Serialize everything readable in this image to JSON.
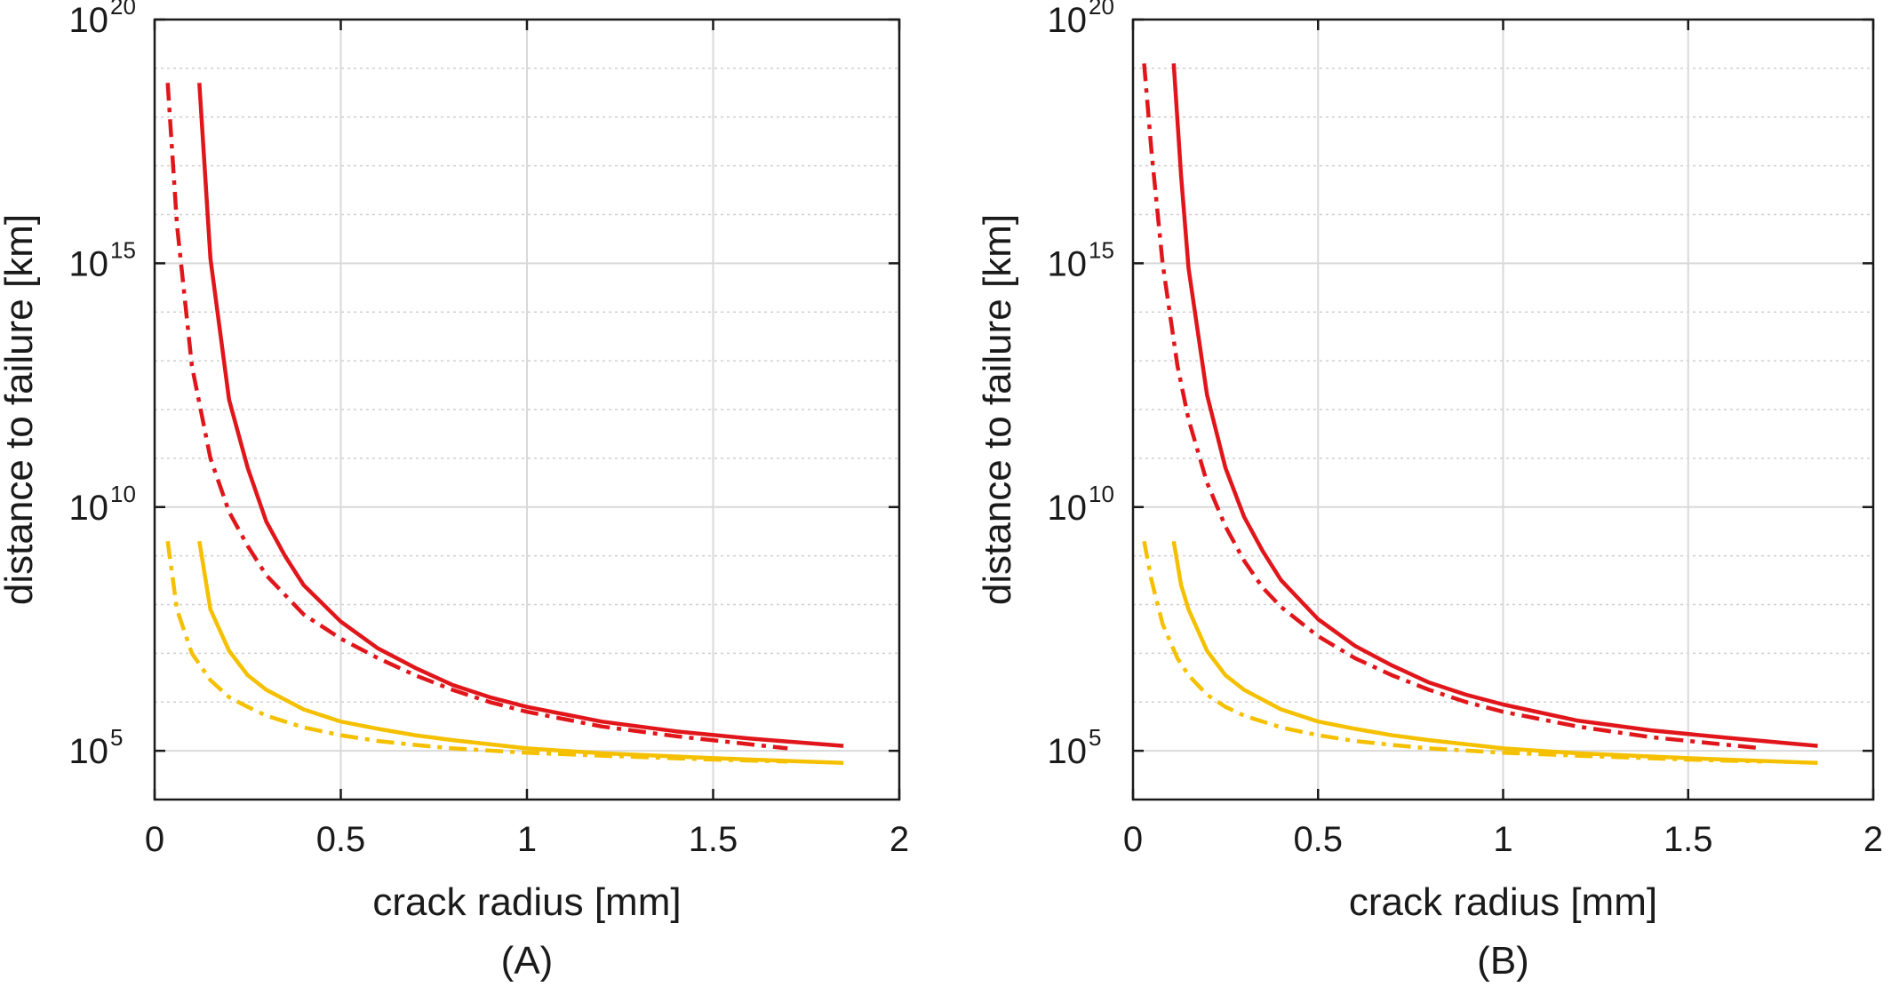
{
  "chart_data": [
    {
      "type": "line",
      "panel_label": "(A)",
      "xlabel": "crack radius [mm]",
      "ylabel": "distance to failure [km]",
      "xlim": [
        0,
        2
      ],
      "ylim_log10": [
        4,
        20
      ],
      "yscale": "log",
      "grid": true,
      "xticks": [
        "0",
        "0.5",
        "1",
        "1.5",
        "2"
      ],
      "yticks": [
        {
          "base": "10",
          "exp": "5",
          "log10": 5
        },
        {
          "base": "10",
          "exp": "10",
          "log10": 10
        },
        {
          "base": "10",
          "exp": "15",
          "log10": 15
        },
        {
          "base": "10",
          "exp": "20",
          "log10": 20
        }
      ],
      "series": [
        {
          "color": "#e0161b",
          "style": "solid",
          "x": [
            0.12,
            0.15,
            0.2,
            0.25,
            0.3,
            0.35,
            0.4,
            0.5,
            0.6,
            0.7,
            0.8,
            0.9,
            1.0,
            1.2,
            1.4,
            1.6,
            1.85
          ],
          "y_log10": [
            18.7,
            15.1,
            12.2,
            10.8,
            9.7,
            9.0,
            8.4,
            7.65,
            7.1,
            6.7,
            6.35,
            6.1,
            5.9,
            5.6,
            5.4,
            5.25,
            5.1
          ]
        },
        {
          "color": "#e0161b",
          "style": "dashdot",
          "x": [
            0.035,
            0.06,
            0.1,
            0.15,
            0.2,
            0.25,
            0.3,
            0.35,
            0.4,
            0.5,
            0.6,
            0.7,
            0.8,
            0.9,
            1.0,
            1.2,
            1.4,
            1.7
          ],
          "y_log10": [
            18.7,
            15.8,
            12.9,
            11.0,
            9.9,
            9.2,
            8.6,
            8.2,
            7.8,
            7.3,
            6.9,
            6.55,
            6.25,
            6.0,
            5.8,
            5.5,
            5.3,
            5.05
          ]
        },
        {
          "color": "#f5c000",
          "style": "solid",
          "x": [
            0.12,
            0.15,
            0.2,
            0.25,
            0.3,
            0.4,
            0.5,
            0.6,
            0.7,
            0.8,
            1.0,
            1.2,
            1.5,
            1.85
          ],
          "y_log10": [
            9.3,
            7.9,
            7.05,
            6.55,
            6.25,
            5.85,
            5.6,
            5.45,
            5.32,
            5.22,
            5.05,
            4.95,
            4.85,
            4.75
          ]
        },
        {
          "color": "#f5c000",
          "style": "dashdot",
          "x": [
            0.035,
            0.06,
            0.1,
            0.15,
            0.2,
            0.25,
            0.3,
            0.4,
            0.5,
            0.6,
            0.7,
            0.8,
            1.0,
            1.2,
            1.5,
            1.7
          ],
          "y_log10": [
            9.3,
            7.9,
            7.0,
            6.45,
            6.1,
            5.9,
            5.72,
            5.48,
            5.32,
            5.2,
            5.12,
            5.05,
            4.96,
            4.9,
            4.82,
            4.78
          ]
        }
      ]
    },
    {
      "type": "line",
      "panel_label": "(B)",
      "xlabel": "crack radius [mm]",
      "ylabel": "distance to failure [km]",
      "xlim": [
        0,
        2
      ],
      "ylim_log10": [
        4,
        20
      ],
      "yscale": "log",
      "grid": true,
      "xticks": [
        "0",
        "0.5",
        "1",
        "1.5",
        "2"
      ],
      "yticks": [
        {
          "base": "10",
          "exp": "5",
          "log10": 5
        },
        {
          "base": "10",
          "exp": "10",
          "log10": 10
        },
        {
          "base": "10",
          "exp": "15",
          "log10": 15
        },
        {
          "base": "10",
          "exp": "20",
          "log10": 20
        }
      ],
      "series": [
        {
          "color": "#e0161b",
          "style": "solid",
          "x": [
            0.11,
            0.13,
            0.15,
            0.2,
            0.25,
            0.3,
            0.35,
            0.4,
            0.5,
            0.6,
            0.7,
            0.8,
            0.9,
            1.0,
            1.2,
            1.4,
            1.6,
            1.85
          ],
          "y_log10": [
            19.1,
            16.8,
            14.9,
            12.3,
            10.8,
            9.8,
            9.1,
            8.5,
            7.7,
            7.15,
            6.75,
            6.4,
            6.15,
            5.95,
            5.62,
            5.42,
            5.27,
            5.1
          ]
        },
        {
          "color": "#e0161b",
          "style": "dashdot",
          "x": [
            0.03,
            0.05,
            0.08,
            0.12,
            0.15,
            0.2,
            0.25,
            0.3,
            0.35,
            0.4,
            0.5,
            0.6,
            0.7,
            0.8,
            0.9,
            1.0,
            1.2,
            1.4,
            1.7
          ],
          "y_log10": [
            19.1,
            17.3,
            15.0,
            12.9,
            11.8,
            10.5,
            9.6,
            8.9,
            8.35,
            7.95,
            7.35,
            6.9,
            6.55,
            6.25,
            6.0,
            5.8,
            5.5,
            5.28,
            5.05
          ]
        },
        {
          "color": "#f5c000",
          "style": "solid",
          "x": [
            0.11,
            0.13,
            0.15,
            0.2,
            0.25,
            0.3,
            0.4,
            0.5,
            0.6,
            0.7,
            0.8,
            1.0,
            1.2,
            1.5,
            1.85
          ],
          "y_log10": [
            9.3,
            8.4,
            7.9,
            7.05,
            6.55,
            6.25,
            5.85,
            5.6,
            5.45,
            5.32,
            5.22,
            5.05,
            4.95,
            4.85,
            4.75
          ]
        },
        {
          "color": "#f5c000",
          "style": "dashdot",
          "x": [
            0.03,
            0.05,
            0.08,
            0.12,
            0.15,
            0.2,
            0.25,
            0.3,
            0.4,
            0.5,
            0.6,
            0.7,
            0.8,
            1.0,
            1.2,
            1.5,
            1.7
          ],
          "y_log10": [
            9.3,
            8.5,
            7.6,
            6.9,
            6.55,
            6.15,
            5.9,
            5.72,
            5.48,
            5.32,
            5.2,
            5.12,
            5.05,
            4.96,
            4.9,
            4.82,
            4.78
          ]
        }
      ]
    }
  ]
}
